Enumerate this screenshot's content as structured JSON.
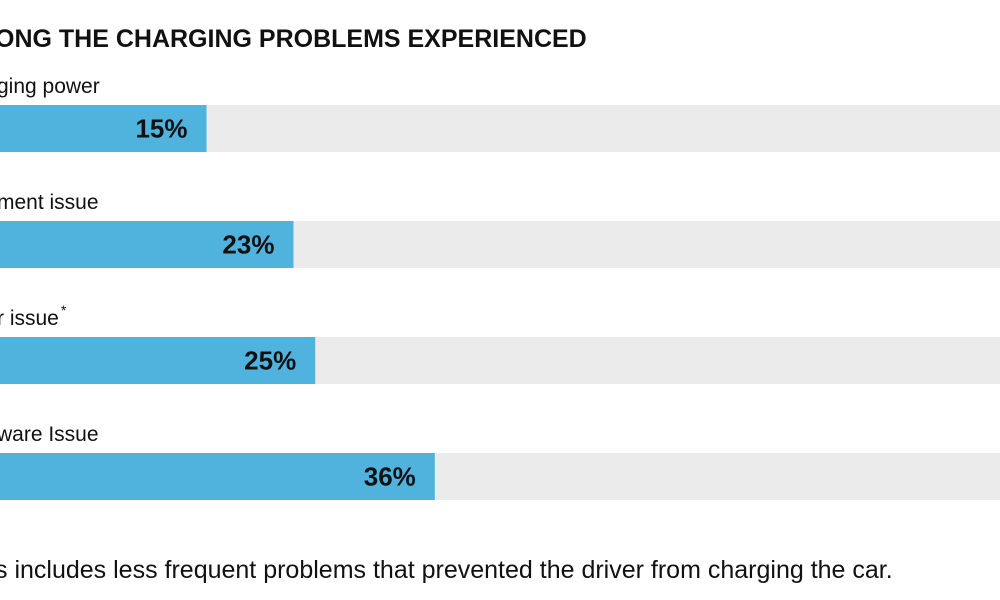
{
  "chart_data": {
    "type": "bar",
    "orientation": "horizontal",
    "title": "ONG THE CHARGING PROBLEMS EXPERIENCED",
    "categories": [
      "ging power",
      "ment issue",
      "r issue",
      "ware Issue"
    ],
    "category_superscripts": [
      "",
      "",
      "*",
      ""
    ],
    "values": [
      15,
      23,
      25,
      36
    ],
    "value_labels": [
      "15%",
      "23%",
      "25%",
      "36%"
    ],
    "xlim": [
      -4,
      88
    ],
    "bar_color": "#4fb3de",
    "track_color": "#ebebeb",
    "footnote": "s includes less frequent problems that prevented the driver from charging the car."
  }
}
